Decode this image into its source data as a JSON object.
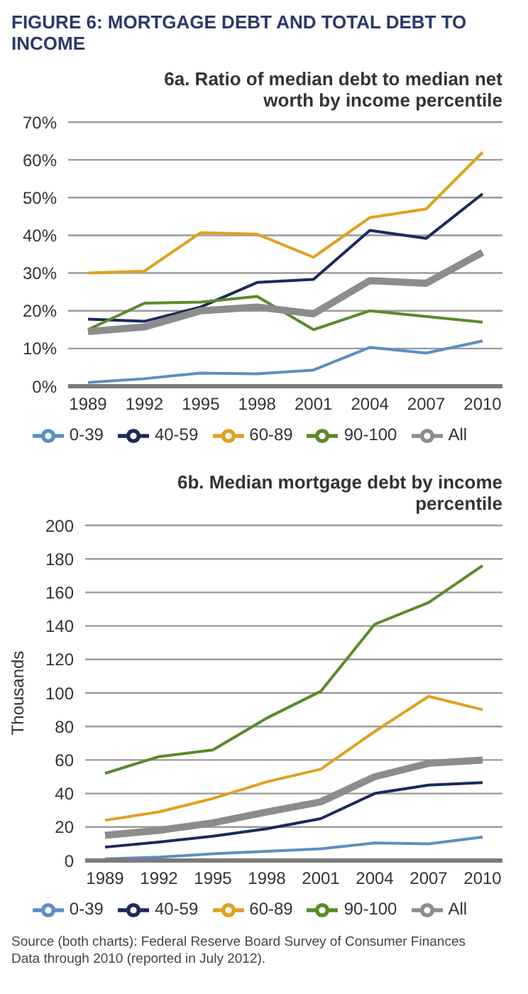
{
  "chart_data": [
    {
      "type": "line",
      "title": "FIGURE 6: MORTGAGE DEBT AND TOTAL DEBT TO INCOME",
      "subtitle": "6a. Ratio of median debt to median net worth by income percentile",
      "categories": [
        "1989",
        "1992",
        "1995",
        "1998",
        "2001",
        "2004",
        "2007",
        "2010"
      ],
      "series": [
        {
          "name": "0-39",
          "color": "#5b8fc3",
          "values": [
            1,
            2,
            3.5,
            3.3,
            4.3,
            10.3,
            8.8,
            12
          ]
        },
        {
          "name": "40-59",
          "color": "#1a2a5a",
          "values": [
            17.8,
            17.2,
            21,
            27.5,
            28.3,
            41.3,
            39.2,
            51
          ]
        },
        {
          "name": "60-89",
          "color": "#e0a020",
          "values": [
            30,
            30.5,
            40.7,
            40.3,
            34.2,
            44.7,
            47,
            62
          ]
        },
        {
          "name": "90-100",
          "color": "#5a8a2a",
          "values": [
            15,
            22,
            22.3,
            23.8,
            15,
            20,
            18.5,
            17
          ]
        },
        {
          "name": "All",
          "color": "#8c8c8c",
          "values": [
            14.5,
            15.7,
            20,
            21,
            19.2,
            28,
            27.3,
            35.5
          ]
        }
      ],
      "ylim": [
        0,
        70
      ],
      "yticks": [
        {
          "value": 0,
          "label": "0%"
        },
        {
          "value": 10,
          "label": "10%"
        },
        {
          "value": 20,
          "label": "20%"
        },
        {
          "value": 30,
          "label": "30%"
        },
        {
          "value": 40,
          "label": "40%"
        },
        {
          "value": 50,
          "label": "50%"
        },
        {
          "value": 60,
          "label": "60%"
        },
        {
          "value": 70,
          "label": "70%"
        }
      ],
      "grid": "y",
      "legend": "bottom",
      "marker": "none"
    },
    {
      "type": "line",
      "title": "6b. Median mortgage debt by income percentile",
      "ylabel": "Thousands",
      "categories": [
        "1989",
        "1992",
        "1995",
        "1998",
        "2001",
        "2004",
        "2007",
        "2010"
      ],
      "series": [
        {
          "name": "0-39",
          "color": "#5b8fc3",
          "values": [
            1,
            2,
            4,
            5.5,
            7,
            10.5,
            10,
            14
          ]
        },
        {
          "name": "40-59",
          "color": "#1a2a5a",
          "values": [
            8,
            11,
            14.5,
            19,
            25,
            40,
            45,
            46.5
          ]
        },
        {
          "name": "60-89",
          "color": "#e0a020",
          "values": [
            24,
            29,
            37,
            47,
            54.5,
            77,
            98,
            90
          ]
        },
        {
          "name": "90-100",
          "color": "#5a8a2a",
          "values": [
            52,
            62,
            66,
            85,
            101,
            141,
            154,
            176
          ]
        },
        {
          "name": "All",
          "color": "#8c8c8c",
          "values": [
            15,
            18,
            22.5,
            29,
            35,
            50,
            58,
            60
          ]
        }
      ],
      "ylim": [
        0,
        200
      ],
      "yticks": [
        0,
        20,
        40,
        60,
        80,
        100,
        120,
        140,
        160,
        180,
        200
      ],
      "grid": "y",
      "legend": "bottom",
      "marker": "none",
      "annotations": [
        "Source (both charts): Federal Reserve Board Survey of Consumer Finances",
        "Data through 2010 (reported in July 2012)."
      ]
    }
  ]
}
